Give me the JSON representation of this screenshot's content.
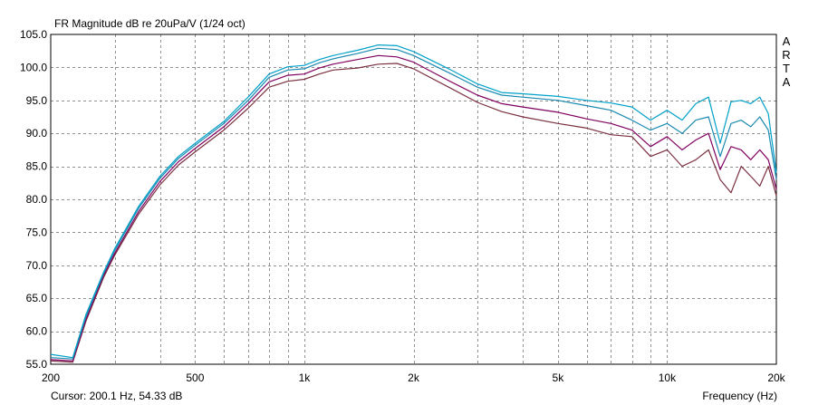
{
  "chart_data": {
    "type": "line",
    "title": "FR Magnitude dB re 20uPa/V (1/24 oct)",
    "xlabel": "Frequency (Hz)",
    "ylabel": "",
    "x_scale": "log",
    "xlim": [
      200,
      20000
    ],
    "ylim": [
      55,
      105
    ],
    "x_ticks": [
      {
        "value": 200,
        "label": "200"
      },
      {
        "value": 500,
        "label": "500"
      },
      {
        "value": 1000,
        "label": "1k"
      },
      {
        "value": 2000,
        "label": "2k"
      },
      {
        "value": 5000,
        "label": "5k"
      },
      {
        "value": 10000,
        "label": "10k"
      },
      {
        "value": 20000,
        "label": "20k"
      }
    ],
    "y_ticks": [
      "55.0",
      "60.0",
      "65.0",
      "70.0",
      "75.0",
      "80.0",
      "85.0",
      "90.0",
      "95.0",
      "100.0",
      "105.0"
    ],
    "grid": true,
    "watermark": "ARTA",
    "cursor_text": "Cursor: 200.1 Hz, 54.33 dB",
    "x": [
      200,
      230,
      250,
      280,
      300,
      350,
      400,
      450,
      500,
      600,
      700,
      800,
      900,
      1000,
      1100,
      1200,
      1400,
      1600,
      1800,
      2000,
      2500,
      3000,
      3500,
      4000,
      5000,
      6000,
      7000,
      8000,
      9000,
      10000,
      11000,
      12000,
      13000,
      14000,
      15000,
      16000,
      17000,
      18000,
      19000,
      20000
    ],
    "series": [
      {
        "color": "#00a0c8",
        "values": [
          56.5,
          56.0,
          62.5,
          69.0,
          72.5,
          79.0,
          83.5,
          86.5,
          88.5,
          91.8,
          95.5,
          99.0,
          100.1,
          100.3,
          101.2,
          101.8,
          102.6,
          103.4,
          103.3,
          102.4,
          99.8,
          97.5,
          96.2,
          96.0,
          95.6,
          95.0,
          94.6,
          94.0,
          92.0,
          93.5,
          92.0,
          94.5,
          95.5,
          88.5,
          94.8,
          95.0,
          94.5,
          95.5,
          93.0,
          84.0
        ]
      },
      {
        "color": "#1a8ab0",
        "values": [
          56.0,
          55.8,
          62.2,
          68.8,
          72.2,
          78.7,
          83.2,
          86.2,
          88.2,
          91.5,
          95.0,
          98.5,
          99.6,
          99.8,
          100.7,
          101.3,
          102.1,
          102.9,
          102.7,
          101.8,
          99.2,
          97.0,
          95.8,
          95.5,
          95.0,
          94.2,
          93.5,
          92.0,
          90.5,
          91.5,
          90.0,
          92.0,
          92.5,
          86.5,
          91.5,
          92.0,
          91.0,
          92.5,
          90.5,
          83.0
        ]
      },
      {
        "color": "#800060",
        "values": [
          55.7,
          55.5,
          61.8,
          68.5,
          71.8,
          78.2,
          82.7,
          85.7,
          87.7,
          91.0,
          94.5,
          97.8,
          98.8,
          99.0,
          99.9,
          100.5,
          101.2,
          101.8,
          101.6,
          100.8,
          98.0,
          95.8,
          94.5,
          94.0,
          93.2,
          92.2,
          91.5,
          90.5,
          88.0,
          89.5,
          87.5,
          89.0,
          90.0,
          84.5,
          88.0,
          87.5,
          86.0,
          87.5,
          86.0,
          81.5
        ]
      },
      {
        "color": "#7a3040",
        "values": [
          55.5,
          55.3,
          61.5,
          68.2,
          71.5,
          77.8,
          82.2,
          85.2,
          87.2,
          90.5,
          93.8,
          97.0,
          97.9,
          98.2,
          99.0,
          99.6,
          99.9,
          100.5,
          100.6,
          99.8,
          97.0,
          94.7,
          93.3,
          92.5,
          91.5,
          90.8,
          89.8,
          89.5,
          86.5,
          87.5,
          85.0,
          86.0,
          87.5,
          83.0,
          81.0,
          85.0,
          83.5,
          82.0,
          85.0,
          80.5
        ]
      }
    ]
  }
}
